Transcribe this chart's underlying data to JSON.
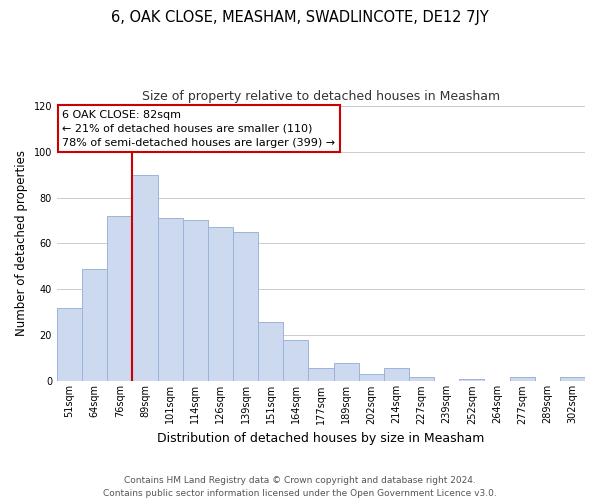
{
  "title": "6, OAK CLOSE, MEASHAM, SWADLINCOTE, DE12 7JY",
  "subtitle": "Size of property relative to detached houses in Measham",
  "xlabel": "Distribution of detached houses by size in Measham",
  "ylabel": "Number of detached properties",
  "bar_labels": [
    "51sqm",
    "64sqm",
    "76sqm",
    "89sqm",
    "101sqm",
    "114sqm",
    "126sqm",
    "139sqm",
    "151sqm",
    "164sqm",
    "177sqm",
    "189sqm",
    "202sqm",
    "214sqm",
    "227sqm",
    "239sqm",
    "252sqm",
    "264sqm",
    "277sqm",
    "289sqm",
    "302sqm"
  ],
  "bar_values": [
    32,
    49,
    72,
    90,
    71,
    70,
    67,
    65,
    26,
    18,
    6,
    8,
    3,
    6,
    2,
    0,
    1,
    0,
    2,
    0,
    2
  ],
  "bar_color": "#ccd9ef",
  "bar_edge_color": "#9ab4d8",
  "red_line_index": 2.5,
  "annotation_title": "6 OAK CLOSE: 82sqm",
  "annotation_line1": "← 21% of detached houses are smaller (110)",
  "annotation_line2": "78% of semi-detached houses are larger (399) →",
  "annotation_box_color": "#ffffff",
  "annotation_border_color": "#cc0000",
  "ylim": [
    0,
    120
  ],
  "yticks": [
    0,
    20,
    40,
    60,
    80,
    100,
    120
  ],
  "footer1": "Contains HM Land Registry data © Crown copyright and database right 2024.",
  "footer2": "Contains public sector information licensed under the Open Government Licence v3.0.",
  "bg_color": "#ffffff",
  "grid_color": "#cccccc",
  "title_fontsize": 10.5,
  "subtitle_fontsize": 9,
  "ylabel_fontsize": 8.5,
  "xlabel_fontsize": 9,
  "tick_fontsize": 7,
  "footer_fontsize": 6.5,
  "annot_fontsize": 8
}
